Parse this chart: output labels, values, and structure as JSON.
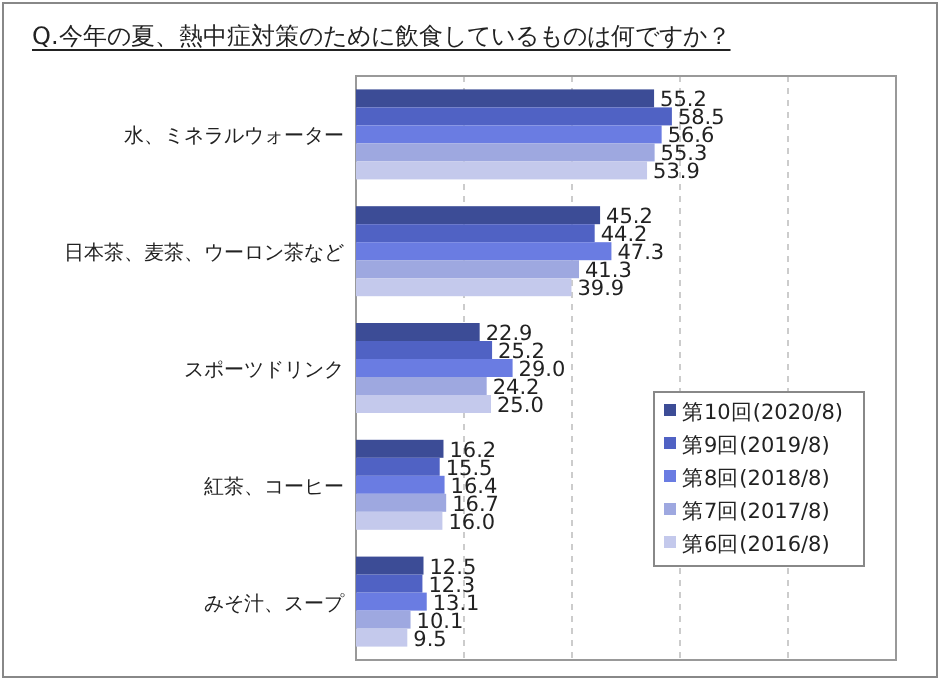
{
  "chart_data": {
    "type": "bar",
    "orientation": "horizontal",
    "title": "Q.今年の夏、熱中症対策のために飲食しているものは何ですか？",
    "categories": [
      "水、ミネラルウォーター",
      "日本茶、麦茶、ウーロン茶など",
      "スポーツドリンク",
      "紅茶、コーヒー",
      "みそ汁、スープ"
    ],
    "series": [
      {
        "name": "第10回(2020/8)",
        "color": "#3c4c96",
        "values": [
          55.2,
          45.2,
          22.9,
          16.2,
          12.5
        ],
        "value_labels": [
          "55.2",
          "45.2",
          "22.9",
          "16.2",
          "12.5"
        ]
      },
      {
        "name": "第9回(2019/8)",
        "color": "#5062c4",
        "values": [
          58.5,
          44.2,
          25.2,
          15.5,
          12.3
        ],
        "value_labels": [
          "58.5",
          "44.2",
          "25.2",
          "15.5",
          "12.3"
        ]
      },
      {
        "name": "第8回(2018/8)",
        "color": "#6a7ce2",
        "values": [
          56.6,
          47.3,
          29,
          16.4,
          13.1
        ],
        "value_labels": [
          "56.6",
          "47.3",
          "29.0",
          "16.4",
          "13.1"
        ]
      },
      {
        "name": "第7回(2017/8)",
        "color": "#9ea8e0",
        "values": [
          55.3,
          41.3,
          24.2,
          16.7,
          10.1
        ],
        "value_labels": [
          "55.3",
          "41.3",
          "24.2",
          "16.7",
          "10.1"
        ]
      },
      {
        "name": "第6回(2016/8)",
        "color": "#c4c9ec",
        "values": [
          53.9,
          39.9,
          25,
          16,
          9.5
        ],
        "value_labels": [
          "53.9",
          "39.9",
          "25.0",
          "16.0",
          "9.5"
        ]
      }
    ],
    "xlim": [
      0,
      100
    ],
    "xticks": [
      {
        "value": 20,
        "label": null
      },
      {
        "value": 40,
        "label": null
      },
      {
        "value": 60,
        "label": null
      },
      {
        "value": 80,
        "label": null
      }
    ],
    "tick_labels": "y",
    "grid": "x",
    "legend": "bottom right"
  }
}
